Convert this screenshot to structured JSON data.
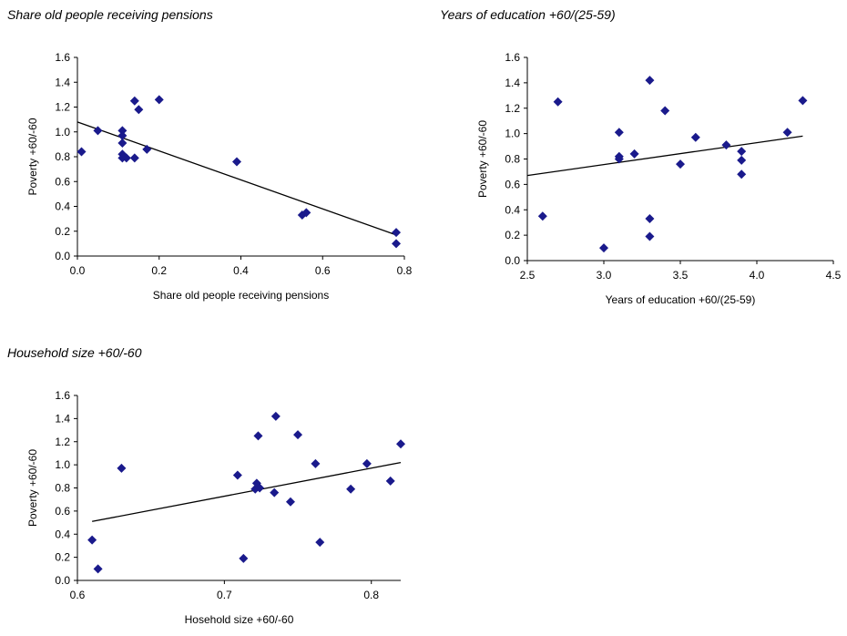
{
  "chart_data": [
    {
      "type": "scatter",
      "title": "Share old people receiving pensions",
      "xlabel": "Share old people receiving pensions",
      "ylabel": "Poverty +60/-60",
      "xlim": [
        0,
        0.8
      ],
      "ylim": [
        0,
        1.6
      ],
      "xticks": [
        "0.0",
        "0.2",
        "0.4",
        "0.6",
        "0.8"
      ],
      "yticks": [
        "0.0",
        "0.2",
        "0.4",
        "0.6",
        "0.8",
        "1.0",
        "1.2",
        "1.4",
        "1.6"
      ],
      "marker_color": "#1a1a8c",
      "trendline": [
        [
          0,
          1.08
        ],
        [
          0.78,
          0.17
        ]
      ],
      "points": [
        [
          0.01,
          0.84
        ],
        [
          0.05,
          1.01
        ],
        [
          0.11,
          1.01
        ],
        [
          0.11,
          0.97
        ],
        [
          0.11,
          0.91
        ],
        [
          0.11,
          0.82
        ],
        [
          0.11,
          0.79
        ],
        [
          0.12,
          0.79
        ],
        [
          0.14,
          0.79
        ],
        [
          0.14,
          1.25
        ],
        [
          0.15,
          1.18
        ],
        [
          0.17,
          0.86
        ],
        [
          0.2,
          1.26
        ],
        [
          0.39,
          0.76
        ],
        [
          0.55,
          0.33
        ],
        [
          0.56,
          0.35
        ],
        [
          0.78,
          0.19
        ],
        [
          0.78,
          0.1
        ]
      ]
    },
    {
      "type": "scatter",
      "title": "Years of education +60/(25-59)",
      "xlabel": "Years of education +60/(25-59)",
      "ylabel": "Poverty +60/-60",
      "xlim": [
        2.5,
        4.5
      ],
      "ylim": [
        0,
        1.6
      ],
      "xticks": [
        "2.5",
        "3.0",
        "3.5",
        "4.0",
        "4.5"
      ],
      "yticks": [
        "0.0",
        "0.2",
        "0.4",
        "0.6",
        "0.8",
        "1.0",
        "1.2",
        "1.4",
        "1.6"
      ],
      "marker_color": "#1a1a8c",
      "trendline": [
        [
          2.5,
          0.67
        ],
        [
          4.3,
          0.98
        ]
      ],
      "points": [
        [
          2.6,
          0.35
        ],
        [
          2.7,
          1.25
        ],
        [
          3.0,
          0.1
        ],
        [
          3.1,
          1.01
        ],
        [
          3.1,
          0.82
        ],
        [
          3.1,
          0.8
        ],
        [
          3.2,
          0.84
        ],
        [
          3.3,
          1.42
        ],
        [
          3.3,
          0.33
        ],
        [
          3.3,
          0.19
        ],
        [
          3.4,
          1.18
        ],
        [
          3.5,
          0.76
        ],
        [
          3.6,
          0.97
        ],
        [
          3.8,
          0.91
        ],
        [
          3.9,
          0.86
        ],
        [
          3.9,
          0.79
        ],
        [
          3.9,
          0.68
        ],
        [
          4.2,
          1.01
        ],
        [
          4.3,
          1.26
        ]
      ]
    },
    {
      "type": "scatter",
      "title": "Household size +60/-60",
      "xlabel": "Hosehold size +60/-60",
      "ylabel": "Poverty +60/-60",
      "xlim": [
        0.6,
        0.82
      ],
      "ylim": [
        0,
        1.6
      ],
      "xticks": [
        "0.6",
        "0.7",
        "0.8"
      ],
      "xtick_values": [
        0.6,
        0.7,
        0.8
      ],
      "yticks": [
        "0.0",
        "0.2",
        "0.4",
        "0.6",
        "0.8",
        "1.0",
        "1.2",
        "1.4",
        "1.6"
      ],
      "marker_color": "#1a1a8c",
      "trendline": [
        [
          0.61,
          0.51
        ],
        [
          0.82,
          1.02
        ]
      ],
      "points": [
        [
          0.61,
          0.35
        ],
        [
          0.614,
          0.1
        ],
        [
          0.63,
          0.97
        ],
        [
          0.709,
          0.91
        ],
        [
          0.713,
          0.19
        ],
        [
          0.721,
          0.79
        ],
        [
          0.722,
          0.84
        ],
        [
          0.723,
          1.25
        ],
        [
          0.724,
          0.8
        ],
        [
          0.734,
          0.76
        ],
        [
          0.735,
          1.42
        ],
        [
          0.745,
          0.68
        ],
        [
          0.75,
          1.26
        ],
        [
          0.762,
          1.01
        ],
        [
          0.765,
          0.33
        ],
        [
          0.786,
          0.79
        ],
        [
          0.797,
          1.01
        ],
        [
          0.813,
          0.86
        ],
        [
          0.82,
          1.18
        ]
      ]
    }
  ]
}
